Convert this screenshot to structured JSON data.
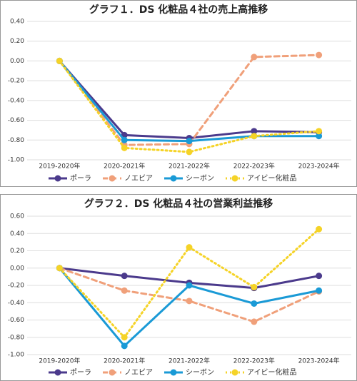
{
  "chart_data": [
    {
      "type": "line",
      "title": "グラフ１．DS 化粧品４社の売上高推移",
      "categories": [
        "2019-2020年",
        "2020-2021年",
        "2021-2022年",
        "2022-2023年",
        "2023-2024年"
      ],
      "series": [
        {
          "name": "ポーラ",
          "color": "#4b3a8c",
          "line_style": "solid",
          "values": [
            0,
            -0.75,
            -0.78,
            -0.71,
            -0.72
          ]
        },
        {
          "name": "ノエビア",
          "color": "#f0a07a",
          "line_style": "dashed",
          "values": [
            0,
            -0.85,
            -0.84,
            0.04,
            0.06
          ]
        },
        {
          "name": "シーボン",
          "color": "#1a9ad6",
          "line_style": "solid",
          "values": [
            0,
            -0.8,
            -0.81,
            -0.76,
            -0.76
          ]
        },
        {
          "name": "アイビー化粧品",
          "color": "#f5d327",
          "line_style": "dotted",
          "values": [
            0,
            -0.88,
            -0.92,
            -0.76,
            -0.71
          ]
        }
      ],
      "ylim": [
        -1.0,
        0.4
      ],
      "yticks": [
        {
          "value": 0.4,
          "label": "0.40"
        },
        {
          "value": 0.2,
          "label": "0.20"
        },
        {
          "value": 0,
          "label": "0.00"
        },
        {
          "value": -0.2,
          "label": "-0.20"
        },
        {
          "value": -0.4,
          "label": "-0.40"
        },
        {
          "value": -0.6,
          "label": "-0.60"
        },
        {
          "value": -0.8,
          "label": "-0.80"
        },
        {
          "value": -1.0,
          "label": "-1.00"
        }
      ],
      "grid": true,
      "legend": "bottom"
    },
    {
      "type": "line",
      "title": "グラフ２．DS 化粧品４社の営業利益推移",
      "categories": [
        "2019-2020年",
        "2020-2021年",
        "2021-2022年",
        "2022-2023年",
        "2023-2024年"
      ],
      "series": [
        {
          "name": "ポーラ",
          "color": "#4b3a8c",
          "line_style": "solid",
          "values": [
            0,
            -0.09,
            -0.17,
            -0.23,
            -0.09
          ]
        },
        {
          "name": "ノエビア",
          "color": "#f0a07a",
          "line_style": "dashed",
          "values": [
            0,
            -0.26,
            -0.38,
            -0.62,
            -0.27
          ]
        },
        {
          "name": "シーボン",
          "color": "#1a9ad6",
          "line_style": "solid",
          "values": [
            0,
            -0.9,
            -0.2,
            -0.41,
            -0.26
          ]
        },
        {
          "name": "アイビー化粧品",
          "color": "#f5d327",
          "line_style": "dotted",
          "values": [
            0,
            -0.8,
            0.24,
            -0.22,
            0.45
          ]
        }
      ],
      "ylim": [
        -1.0,
        0.6
      ],
      "yticks": [
        {
          "value": 0.6,
          "label": "0.60"
        },
        {
          "value": 0.4,
          "label": "0.40"
        },
        {
          "value": 0.2,
          "label": "0.20"
        },
        {
          "value": 0,
          "label": "0.00"
        },
        {
          "value": -0.2,
          "label": "-0.20"
        },
        {
          "value": -0.4,
          "label": "-0.40"
        },
        {
          "value": -0.6,
          "label": "-0.60"
        },
        {
          "value": -0.8,
          "label": "-0.80"
        },
        {
          "value": -1.0,
          "label": "-1.00"
        }
      ],
      "grid": true,
      "legend": "bottom"
    }
  ]
}
